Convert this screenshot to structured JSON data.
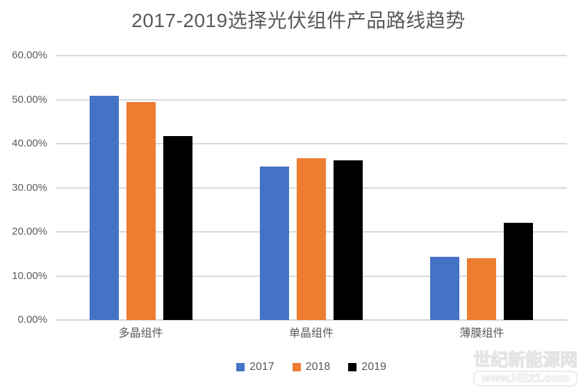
{
  "chart_data": {
    "type": "bar",
    "title": "2017-2019选择光伏组件产品路线趋势",
    "categories": [
      "多晶组件",
      "单晶组件",
      "薄膜组件"
    ],
    "series": [
      {
        "name": "2017",
        "color": "#4472C4",
        "values": [
          50.9,
          34.8,
          14.3
        ]
      },
      {
        "name": "2018",
        "color": "#ED7D31",
        "values": [
          49.4,
          36.7,
          14.0
        ]
      },
      {
        "name": "2019",
        "color": "#000000",
        "values": [
          41.7,
          36.3,
          22.0
        ]
      }
    ],
    "xlabel": "",
    "ylabel": "",
    "ylim": [
      0,
      60
    ],
    "yticks": [
      "0.00%",
      "10.00%",
      "20.00%",
      "30.00%",
      "40.00%",
      "50.00%",
      "60.00%"
    ],
    "ytick_values": [
      0,
      10,
      20,
      30,
      40,
      50,
      60
    ],
    "grid": true,
    "legend_position": "bottom-center"
  },
  "watermark": {
    "line1": "世纪新能源网",
    "line2": "www.NE21.com"
  },
  "colors": {
    "gridline": "#d9d9d9",
    "axis_text": "#595959",
    "title_text": "#595959"
  }
}
